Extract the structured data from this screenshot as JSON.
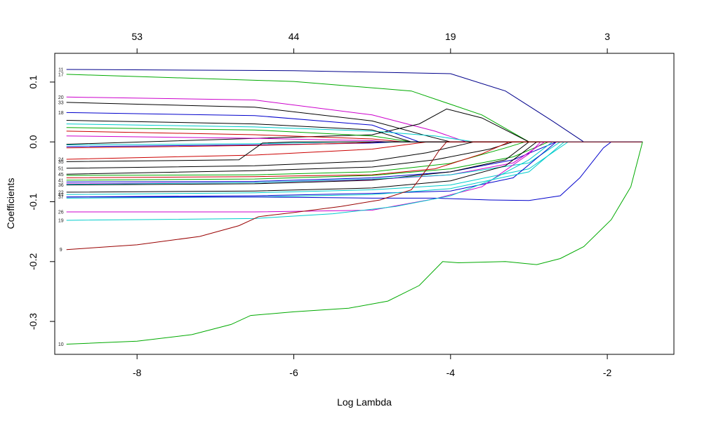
{
  "chart_data": {
    "type": "line",
    "xlabel": "Log Lambda",
    "ylabel": "Coefficients",
    "xlim": [
      -9.05,
      -1.15
    ],
    "ylim": [
      -0.355,
      0.148
    ],
    "x_ticks": [
      -8,
      -6,
      -4,
      -2
    ],
    "x_tick_labels": [
      "-8",
      "-6",
      "-4",
      "-2"
    ],
    "y_ticks": [
      0.1,
      0.0,
      -0.1,
      -0.2,
      -0.3
    ],
    "y_tick_labels": [
      "0.1",
      "0.0",
      "-0.1",
      "-0.2",
      "-0.3"
    ],
    "top_axis": {
      "ticks": [
        -8,
        -6,
        -4,
        -2
      ],
      "labels": [
        "53",
        "44",
        "19",
        "3"
      ]
    },
    "grid": false,
    "colors": [
      "#000000",
      "#cc0000",
      "#00aa00",
      "#0000cc",
      "#00cccc",
      "#cc00cc"
    ],
    "series": [
      {
        "label": "11",
        "color": "#00008b",
        "points": [
          [
            -8.9,
            0.121
          ],
          [
            -6,
            0.119
          ],
          [
            -4.0,
            0.114
          ],
          [
            -3.3,
            0.085
          ],
          [
            -2.7,
            0.035
          ],
          [
            -2.3,
            0.0
          ],
          [
            -1.55,
            0.0
          ]
        ]
      },
      {
        "label": "17",
        "color": "#00aa00",
        "points": [
          [
            -8.9,
            0.113
          ],
          [
            -6,
            0.101
          ],
          [
            -4.5,
            0.085
          ],
          [
            -3.6,
            0.045
          ],
          [
            -3.0,
            0.0
          ],
          [
            -1.55,
            0.0
          ]
        ]
      },
      {
        "label": "20",
        "color": "#cc00cc",
        "points": [
          [
            -8.9,
            0.075
          ],
          [
            -6.5,
            0.07
          ],
          [
            -5,
            0.045
          ],
          [
            -4.2,
            0.018
          ],
          [
            -3.8,
            0.0
          ],
          [
            -1.55,
            0.0
          ]
        ]
      },
      {
        "label": "33",
        "color": "#000000",
        "points": [
          [
            -8.9,
            0.066
          ],
          [
            -6.5,
            0.058
          ],
          [
            -5,
            0.035
          ],
          [
            -4.3,
            0.01
          ],
          [
            -4.0,
            0.0
          ],
          [
            -1.55,
            0.0
          ]
        ]
      },
      {
        "label": "18",
        "color": "#0000cc",
        "points": [
          [
            -8.9,
            0.049
          ],
          [
            -6.5,
            0.044
          ],
          [
            -5,
            0.028
          ],
          [
            -4.4,
            0.0
          ],
          [
            -1.55,
            0.0
          ]
        ]
      },
      {
        "label": "",
        "color": "#000000",
        "points": [
          [
            -8.9,
            -0.004
          ],
          [
            -5.0,
            0.012
          ],
          [
            -4.4,
            0.03
          ],
          [
            -4.05,
            0.055
          ],
          [
            -3.6,
            0.04
          ],
          [
            -3.0,
            0.0
          ],
          [
            -1.55,
            0.0
          ]
        ]
      },
      {
        "label": "",
        "color": "#00cccc",
        "points": [
          [
            -8.9,
            0.03
          ],
          [
            -6.5,
            0.025
          ],
          [
            -5,
            0.018
          ],
          [
            -4.2,
            0.01
          ],
          [
            -3.7,
            0.0
          ],
          [
            -1.55,
            0.0
          ]
        ]
      },
      {
        "label": "",
        "color": "#cc0000",
        "points": [
          [
            -8.9,
            0.018
          ],
          [
            -6.5,
            0.012
          ],
          [
            -5,
            0.005
          ],
          [
            -4.6,
            0.0
          ],
          [
            -1.55,
            0.0
          ]
        ]
      },
      {
        "label": "",
        "color": "#00aa00",
        "points": [
          [
            -8.9,
            0.024
          ],
          [
            -6.5,
            0.02
          ],
          [
            -5,
            0.01
          ],
          [
            -4.5,
            0.0
          ],
          [
            -1.55,
            0.0
          ]
        ]
      },
      {
        "label": "",
        "color": "#cc00cc",
        "points": [
          [
            -8.9,
            0.01
          ],
          [
            -6.5,
            0.006
          ],
          [
            -5,
            0.002
          ],
          [
            -4.8,
            0.0
          ],
          [
            -1.55,
            0.0
          ]
        ]
      },
      {
        "label": "",
        "color": "#000000",
        "points": [
          [
            -8.9,
            0.036
          ],
          [
            -6.5,
            0.03
          ],
          [
            -5,
            0.02
          ],
          [
            -4.5,
            0.0
          ],
          [
            -1.55,
            0.0
          ]
        ]
      },
      {
        "label": "",
        "color": "#0000cc",
        "points": [
          [
            -8.9,
            -0.008
          ],
          [
            -6.5,
            -0.005
          ],
          [
            -5,
            -0.002
          ],
          [
            -4.7,
            0.0
          ],
          [
            -1.55,
            0.0
          ]
        ]
      },
      {
        "label": "",
        "color": "#cc0000",
        "points": [
          [
            -8.9,
            -0.01
          ],
          [
            -6.5,
            -0.006
          ],
          [
            -5.2,
            -0.002
          ],
          [
            -4.9,
            0.0
          ],
          [
            -1.55,
            0.0
          ]
        ]
      },
      {
        "label": "",
        "color": "#00cccc",
        "points": [
          [
            -8.9,
            -0.005
          ],
          [
            -6.5,
            -0.003
          ],
          [
            -5.3,
            0.0
          ],
          [
            -1.55,
            0.0
          ]
        ]
      },
      {
        "label": "24",
        "color": "#cc0000",
        "points": [
          [
            -8.9,
            -0.029
          ],
          [
            -6.5,
            -0.022
          ],
          [
            -5,
            -0.012
          ],
          [
            -4.3,
            0.0
          ],
          [
            -1.55,
            0.0
          ]
        ]
      },
      {
        "label": "35",
        "color": "#000000",
        "points": [
          [
            -8.9,
            -0.033
          ],
          [
            -6.7,
            -0.03
          ],
          [
            -6.4,
            -0.002
          ],
          [
            -6.0,
            0.0
          ],
          [
            -1.55,
            0.0
          ]
        ]
      },
      {
        "label": "51",
        "color": "#000000",
        "points": [
          [
            -8.9,
            -0.044
          ],
          [
            -6.5,
            -0.04
          ],
          [
            -5,
            -0.032
          ],
          [
            -4.3,
            -0.018
          ],
          [
            -3.7,
            0.0
          ],
          [
            -1.55,
            0.0
          ]
        ]
      },
      {
        "label": "45",
        "color": "#000000",
        "points": [
          [
            -8.9,
            -0.054
          ],
          [
            -6.5,
            -0.048
          ],
          [
            -5,
            -0.042
          ],
          [
            -4.2,
            -0.03
          ],
          [
            -3.5,
            -0.012
          ],
          [
            -3.2,
            0.0
          ],
          [
            -1.55,
            0.0
          ]
        ]
      },
      {
        "label": "",
        "color": "#00aa00",
        "points": [
          [
            -8.9,
            -0.056
          ],
          [
            -6.5,
            -0.055
          ],
          [
            -5,
            -0.05
          ],
          [
            -4.0,
            -0.036
          ],
          [
            -3.3,
            -0.01
          ],
          [
            -3.05,
            0.0
          ],
          [
            -1.55,
            0.0
          ]
        ]
      },
      {
        "label": "",
        "color": "#cc0000",
        "points": [
          [
            -8.9,
            -0.06
          ],
          [
            -6.5,
            -0.058
          ],
          [
            -5,
            -0.055
          ],
          [
            -4.2,
            -0.045
          ],
          [
            -3.6,
            -0.02
          ],
          [
            -3.25,
            0.0
          ],
          [
            -1.55,
            0.0
          ]
        ]
      },
      {
        "label": "41",
        "color": "#00aa00",
        "points": [
          [
            -8.9,
            -0.064
          ],
          [
            -6.5,
            -0.062
          ],
          [
            -5,
            -0.056
          ],
          [
            -4.0,
            -0.045
          ],
          [
            -3.2,
            -0.025
          ],
          [
            -2.75,
            0.0
          ],
          [
            -1.55,
            0.0
          ]
        ]
      },
      {
        "label": "",
        "color": "#0000cc",
        "points": [
          [
            -8.9,
            -0.067
          ],
          [
            -6.5,
            -0.066
          ],
          [
            -5,
            -0.06
          ],
          [
            -4.0,
            -0.05
          ],
          [
            -3.2,
            -0.03
          ],
          [
            -2.65,
            0.0
          ],
          [
            -1.55,
            0.0
          ]
        ]
      },
      {
        "label": "",
        "color": "#cc00cc",
        "points": [
          [
            -8.9,
            -0.07
          ],
          [
            -6.5,
            -0.068
          ],
          [
            -5,
            -0.063
          ],
          [
            -4.0,
            -0.055
          ],
          [
            -3.2,
            -0.035
          ],
          [
            -2.8,
            0.0
          ],
          [
            -1.55,
            0.0
          ]
        ]
      },
      {
        "label": "36",
        "color": "#000000",
        "points": [
          [
            -8.9,
            -0.072
          ],
          [
            -6.5,
            -0.07
          ],
          [
            -5,
            -0.064
          ],
          [
            -4.0,
            -0.05
          ],
          [
            -3.3,
            -0.03
          ],
          [
            -3.0,
            0.0
          ],
          [
            -1.55,
            0.0
          ]
        ]
      },
      {
        "label": "",
        "color": "#00cccc",
        "points": [
          [
            -8.9,
            -0.071
          ],
          [
            -6.5,
            -0.068
          ],
          [
            -5,
            -0.062
          ],
          [
            -4.0,
            -0.055
          ],
          [
            -3.0,
            -0.035
          ],
          [
            -2.6,
            0.0
          ],
          [
            -1.55,
            0.0
          ]
        ]
      },
      {
        "label": "22",
        "color": "#000000",
        "points": [
          [
            -8.9,
            -0.084
          ],
          [
            -6.5,
            -0.082
          ],
          [
            -5,
            -0.077
          ],
          [
            -4.0,
            -0.065
          ],
          [
            -3.3,
            -0.04
          ],
          [
            -2.9,
            0.0
          ],
          [
            -1.55,
            0.0
          ]
        ]
      },
      {
        "label": "47",
        "color": "#00cccc",
        "points": [
          [
            -8.9,
            -0.088
          ],
          [
            -6.5,
            -0.085
          ],
          [
            -5,
            -0.08
          ],
          [
            -4.0,
            -0.072
          ],
          [
            -3.0,
            -0.045
          ],
          [
            -2.5,
            0.0
          ],
          [
            -1.55,
            0.0
          ]
        ]
      },
      {
        "label": "37",
        "color": "#0000cc",
        "points": [
          [
            -8.9,
            -0.092
          ],
          [
            -6.5,
            -0.09
          ],
          [
            -5,
            -0.086
          ],
          [
            -4.0,
            -0.082
          ],
          [
            -3.2,
            -0.06
          ],
          [
            -2.65,
            0.0
          ],
          [
            -1.55,
            0.0
          ]
        ]
      },
      {
        "label": "",
        "color": "#00cccc",
        "points": [
          [
            -8.9,
            -0.094
          ],
          [
            -6.5,
            -0.092
          ],
          [
            -5,
            -0.088
          ],
          [
            -4.0,
            -0.078
          ],
          [
            -3.0,
            -0.05
          ],
          [
            -2.55,
            0.0
          ],
          [
            -1.55,
            0.0
          ]
        ]
      },
      {
        "label": "",
        "color": "#0000cc",
        "points": [
          [
            -8.9,
            -0.092
          ],
          [
            -6.5,
            -0.092
          ],
          [
            -5.0,
            -0.094
          ],
          [
            -4.2,
            -0.094
          ],
          [
            -3.5,
            -0.097
          ],
          [
            -3.0,
            -0.098
          ],
          [
            -2.6,
            -0.09
          ],
          [
            -2.35,
            -0.06
          ],
          [
            -2.05,
            -0.01
          ],
          [
            -1.95,
            0.0
          ],
          [
            -1.55,
            0.0
          ]
        ]
      },
      {
        "label": "26",
        "color": "#cc00cc",
        "points": [
          [
            -8.9,
            -0.117
          ],
          [
            -6.5,
            -0.117
          ],
          [
            -5,
            -0.114
          ],
          [
            -4.2,
            -0.095
          ],
          [
            -3.6,
            -0.075
          ],
          [
            -3.0,
            -0.02
          ],
          [
            -2.85,
            0.0
          ],
          [
            -1.55,
            0.0
          ]
        ]
      },
      {
        "label": "19",
        "color": "#00cccc",
        "points": [
          [
            -8.9,
            -0.131
          ],
          [
            -6.5,
            -0.128
          ],
          [
            -5.5,
            -0.12
          ],
          [
            -4.7,
            -0.108
          ],
          [
            -4.0,
            -0.09
          ],
          [
            -3.5,
            -0.065
          ],
          [
            -3.0,
            -0.03
          ],
          [
            -2.7,
            0.0
          ],
          [
            -1.55,
            0.0
          ]
        ]
      },
      {
        "label": "9",
        "color": "#990000",
        "points": [
          [
            -8.9,
            -0.18
          ],
          [
            -8,
            -0.172
          ],
          [
            -7.2,
            -0.158
          ],
          [
            -6.7,
            -0.14
          ],
          [
            -6.45,
            -0.125
          ],
          [
            -6.0,
            -0.118
          ],
          [
            -5.4,
            -0.108
          ],
          [
            -4.9,
            -0.097
          ],
          [
            -4.5,
            -0.08
          ],
          [
            -4.3,
            -0.045
          ],
          [
            -4.15,
            -0.015
          ],
          [
            -4.05,
            0.0
          ],
          [
            -1.55,
            0.0
          ]
        ]
      },
      {
        "label": "10",
        "color": "#00aa00",
        "points": [
          [
            -8.9,
            -0.338
          ],
          [
            -8.0,
            -0.333
          ],
          [
            -7.3,
            -0.322
          ],
          [
            -6.8,
            -0.305
          ],
          [
            -6.55,
            -0.29
          ],
          [
            -6.0,
            -0.284
          ],
          [
            -5.3,
            -0.278
          ],
          [
            -4.8,
            -0.266
          ],
          [
            -4.4,
            -0.24
          ],
          [
            -4.1,
            -0.2
          ],
          [
            -3.9,
            -0.202
          ],
          [
            -3.3,
            -0.2
          ],
          [
            -2.9,
            -0.205
          ],
          [
            -2.6,
            -0.195
          ],
          [
            -2.3,
            -0.175
          ],
          [
            -1.95,
            -0.13
          ],
          [
            -1.7,
            -0.075
          ],
          [
            -1.55,
            0.0
          ]
        ]
      }
    ]
  }
}
